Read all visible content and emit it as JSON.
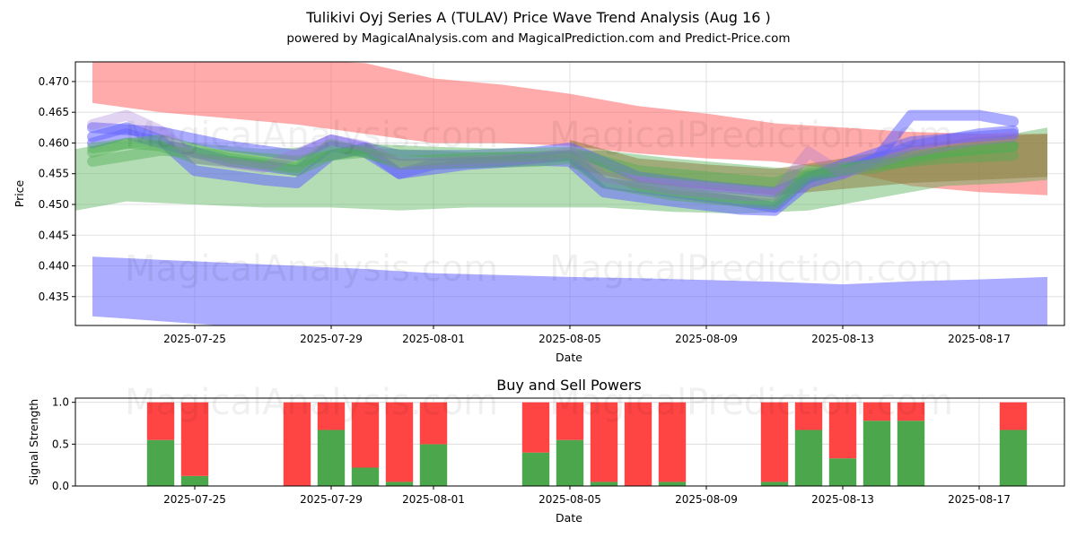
{
  "title": "Tulikivi Oyj Series A (TULAV) Price Wave Trend Analysis (Aug 16 )",
  "subtitle": "powered by MagicalAnalysis.com and MagicalPrediction.com and Predict-Price.com",
  "watermarks": [
    "MagicalAnalysis.com",
    "MagicalPrediction.com"
  ],
  "colors": {
    "red_band": "#ff6666",
    "blue_band": "#6666ff",
    "green_band": "#4caf50",
    "buy": "#4ca64c",
    "sell": "#ff4444"
  },
  "chart_data": [
    {
      "type": "area",
      "xlabel": "Date",
      "ylabel": "Price",
      "x_ticks": [
        "2025-07-25",
        "2025-07-29",
        "2025-08-01",
        "2025-08-05",
        "2025-08-09",
        "2025-08-13",
        "2025-08-17"
      ],
      "y_ticks": [
        "0.435",
        "0.440",
        "0.445",
        "0.450",
        "0.455",
        "0.460",
        "0.465",
        "0.470"
      ],
      "xlim": [
        "2025-07-21T12:00",
        "2025-08-19T12:00"
      ],
      "ylim": [
        0.4303,
        0.4732
      ],
      "grid": true,
      "bands": [
        {
          "color": "red",
          "dates": [
            "2025-07-22",
            "2025-07-24",
            "2025-07-26",
            "2025-07-28",
            "2025-07-30",
            "2025-08-01",
            "2025-08-03",
            "2025-08-05",
            "2025-08-07",
            "2025-08-09",
            "2025-08-11",
            "2025-08-13",
            "2025-08-15",
            "2025-08-17",
            "2025-08-19"
          ],
          "upper": [
            0.4735,
            0.4735,
            0.4735,
            0.4735,
            0.473,
            0.4705,
            0.4695,
            0.468,
            0.466,
            0.4648,
            0.4632,
            0.4625,
            0.4618,
            0.4615,
            0.4615
          ],
          "lower": [
            0.4665,
            0.465,
            0.464,
            0.463,
            0.4615,
            0.46,
            0.46,
            0.4595,
            0.4583,
            0.4575,
            0.457,
            0.4555,
            0.453,
            0.452,
            0.4515
          ]
        },
        {
          "color": "blue",
          "dates": [
            "2025-07-22",
            "2025-07-24",
            "2025-07-26",
            "2025-07-28",
            "2025-07-30",
            "2025-08-01",
            "2025-08-03",
            "2025-08-05",
            "2025-08-07",
            "2025-08-09",
            "2025-08-11",
            "2025-08-13",
            "2025-08-15",
            "2025-08-17",
            "2025-08-19"
          ],
          "upper": [
            0.4415,
            0.441,
            0.4405,
            0.44,
            0.4395,
            0.4388,
            0.4385,
            0.4382,
            0.438,
            0.4377,
            0.4374,
            0.437,
            0.4375,
            0.4378,
            0.4382
          ],
          "lower": [
            0.4318,
            0.431,
            0.4302,
            0.4295,
            0.429,
            0.4288,
            0.4285,
            0.4283,
            0.428,
            0.4278,
            0.4276,
            0.4274,
            0.4273,
            0.4272,
            0.43
          ]
        },
        {
          "color": "green",
          "dates": [
            "2025-07-21",
            "2025-07-23",
            "2025-07-25",
            "2025-07-27",
            "2025-07-29",
            "2025-07-31",
            "2025-08-02",
            "2025-08-04",
            "2025-08-06",
            "2025-08-08",
            "2025-08-10",
            "2025-08-12",
            "2025-08-14",
            "2025-08-16",
            "2025-08-18",
            "2025-08-19"
          ],
          "upper": [
            0.4585,
            0.4605,
            0.46,
            0.459,
            0.4595,
            0.459,
            0.4585,
            0.4585,
            0.4588,
            0.4575,
            0.4565,
            0.4555,
            0.4575,
            0.4595,
            0.4615,
            0.4625
          ],
          "lower": [
            0.4485,
            0.4505,
            0.45,
            0.4495,
            0.4495,
            0.449,
            0.4495,
            0.4495,
            0.4495,
            0.4488,
            0.4485,
            0.449,
            0.451,
            0.453,
            0.4535,
            0.454
          ]
        },
        {
          "color": "brown",
          "dates": [
            "2025-08-05",
            "2025-08-07",
            "2025-08-09",
            "2025-08-11",
            "2025-08-13",
            "2025-08-15",
            "2025-08-17",
            "2025-08-19"
          ],
          "upper": [
            0.4605,
            0.4575,
            0.4565,
            0.4558,
            0.4575,
            0.4595,
            0.461,
            0.4615
          ],
          "lower": [
            0.456,
            0.4535,
            0.4525,
            0.4515,
            0.4525,
            0.4535,
            0.454,
            0.4545
          ]
        }
      ],
      "waves": [
        {
          "color": "blue",
          "dates": [
            "2025-07-22",
            "2025-07-23",
            "2025-07-24",
            "2025-07-25",
            "2025-07-27",
            "2025-07-28",
            "2025-07-29",
            "2025-07-30",
            "2025-07-31",
            "2025-08-02",
            "2025-08-04",
            "2025-08-05",
            "2025-08-06",
            "2025-08-08",
            "2025-08-10",
            "2025-08-11",
            "2025-08-12",
            "2025-08-13",
            "2025-08-14",
            "2025-08-15",
            "2025-08-17",
            "2025-08-18"
          ],
          "values": [
            0.461,
            0.4625,
            0.4605,
            0.4555,
            0.454,
            0.4535,
            0.458,
            0.4592,
            0.455,
            0.4565,
            0.4572,
            0.457,
            0.452,
            0.4505,
            0.4492,
            0.449,
            0.4535,
            0.455,
            0.4575,
            0.4645,
            0.4645,
            0.4635
          ]
        },
        {
          "color": "blue",
          "dates": [
            "2025-07-22",
            "2025-07-23",
            "2025-07-24",
            "2025-07-26",
            "2025-07-28",
            "2025-07-29",
            "2025-07-30",
            "2025-07-31",
            "2025-08-01",
            "2025-08-03",
            "2025-08-05",
            "2025-08-06",
            "2025-08-08",
            "2025-08-10",
            "2025-08-11",
            "2025-08-12",
            "2025-08-13",
            "2025-08-15",
            "2025-08-17",
            "2025-08-18"
          ],
          "values": [
            0.46,
            0.4615,
            0.46,
            0.457,
            0.4555,
            0.4595,
            0.4585,
            0.455,
            0.4565,
            0.457,
            0.458,
            0.4535,
            0.452,
            0.4505,
            0.4495,
            0.4545,
            0.4555,
            0.4595,
            0.4615,
            0.462
          ]
        },
        {
          "color": "blue",
          "dates": [
            "2025-07-22",
            "2025-07-24",
            "2025-07-26",
            "2025-07-28",
            "2025-07-29",
            "2025-07-31",
            "2025-08-02",
            "2025-08-04",
            "2025-08-05",
            "2025-08-07",
            "2025-08-09",
            "2025-08-11",
            "2025-08-13",
            "2025-08-15",
            "2025-08-18"
          ],
          "values": [
            0.4625,
            0.4618,
            0.4595,
            0.458,
            0.4605,
            0.458,
            0.458,
            0.4585,
            0.4592,
            0.4545,
            0.453,
            0.452,
            0.4565,
            0.4602,
            0.4615
          ]
        },
        {
          "color": "green",
          "dates": [
            "2025-07-22",
            "2025-07-23",
            "2025-07-24",
            "2025-07-25",
            "2025-07-27",
            "2025-07-28",
            "2025-07-29",
            "2025-07-30",
            "2025-07-31",
            "2025-08-02",
            "2025-08-04",
            "2025-08-05",
            "2025-08-06",
            "2025-08-08",
            "2025-08-10",
            "2025-08-11",
            "2025-08-12",
            "2025-08-13",
            "2025-08-15",
            "2025-08-17",
            "2025-08-18"
          ],
          "values": [
            0.4585,
            0.46,
            0.4595,
            0.4575,
            0.4565,
            0.4555,
            0.458,
            0.4585,
            0.4565,
            0.4568,
            0.457,
            0.4575,
            0.4535,
            0.4515,
            0.4505,
            0.45,
            0.4545,
            0.4555,
            0.458,
            0.459,
            0.4595
          ]
        },
        {
          "color": "green",
          "dates": [
            "2025-07-22",
            "2025-07-24",
            "2025-07-26",
            "2025-07-28",
            "2025-07-30",
            "2025-08-01",
            "2025-08-03",
            "2025-08-05",
            "2025-08-07",
            "2025-08-09",
            "2025-08-11",
            "2025-08-12",
            "2025-08-14",
            "2025-08-16",
            "2025-08-18"
          ],
          "values": [
            0.457,
            0.4588,
            0.458,
            0.457,
            0.459,
            0.4585,
            0.4582,
            0.4585,
            0.4555,
            0.4545,
            0.4535,
            0.4555,
            0.4565,
            0.4575,
            0.458
          ]
        },
        {
          "color": "green",
          "dates": [
            "2025-07-22",
            "2025-07-24",
            "2025-07-26",
            "2025-07-28",
            "2025-07-29",
            "2025-07-31",
            "2025-08-02",
            "2025-08-04",
            "2025-08-05",
            "2025-08-07",
            "2025-08-09",
            "2025-08-11",
            "2025-08-12",
            "2025-08-14",
            "2025-08-16",
            "2025-08-18"
          ],
          "values": [
            0.4592,
            0.4605,
            0.4575,
            0.456,
            0.4598,
            0.457,
            0.4575,
            0.4578,
            0.458,
            0.453,
            0.4515,
            0.4505,
            0.455,
            0.456,
            0.4585,
            0.4595
          ]
        },
        {
          "color": "purple",
          "dates": [
            "2025-07-22",
            "2025-07-23",
            "2025-07-24",
            "2025-07-25",
            "2025-07-27",
            "2025-07-29",
            "2025-07-30",
            "2025-07-31",
            "2025-08-02",
            "2025-08-04",
            "2025-08-05",
            "2025-08-06",
            "2025-08-08",
            "2025-08-10",
            "2025-08-11",
            "2025-08-12",
            "2025-08-13",
            "2025-08-15",
            "2025-08-17",
            "2025-08-18"
          ],
          "values": [
            0.463,
            0.4645,
            0.462,
            0.4575,
            0.456,
            0.4605,
            0.4595,
            0.4565,
            0.457,
            0.4575,
            0.4585,
            0.4545,
            0.4525,
            0.4515,
            0.4515,
            0.4585,
            0.455,
            0.4585,
            0.4605,
            0.461
          ]
        }
      ]
    },
    {
      "type": "bar",
      "title": "Buy and Sell Powers",
      "xlabel": "Date",
      "ylabel": "Signal Strength",
      "x_ticks": [
        "2025-07-25",
        "2025-07-29",
        "2025-08-01",
        "2025-08-05",
        "2025-08-09",
        "2025-08-13",
        "2025-08-17"
      ],
      "y_ticks": [
        "0.0",
        "0.5",
        "1.0"
      ],
      "xlim": [
        "2025-07-21T12:00",
        "2025-08-19T12:00"
      ],
      "ylim": [
        0,
        1.05
      ],
      "categories": [
        "2025-07-24",
        "2025-07-25",
        "2025-07-28",
        "2025-07-29",
        "2025-07-30",
        "2025-07-31",
        "2025-08-01",
        "2025-08-04",
        "2025-08-05",
        "2025-08-06",
        "2025-08-07",
        "2025-08-08",
        "2025-08-11",
        "2025-08-12",
        "2025-08-13",
        "2025-08-14",
        "2025-08-15",
        "2025-08-18"
      ],
      "series": [
        {
          "name": "Buy",
          "values": [
            0.55,
            0.12,
            0.0,
            0.67,
            0.22,
            0.05,
            0.5,
            0.4,
            0.55,
            0.05,
            0.0,
            0.05,
            0.05,
            0.67,
            0.33,
            0.78,
            0.78,
            0.67
          ]
        },
        {
          "name": "Sell",
          "values": [
            0.45,
            0.88,
            1.0,
            0.33,
            0.78,
            0.95,
            0.5,
            0.6,
            0.45,
            0.95,
            1.0,
            0.95,
            0.95,
            0.33,
            0.67,
            0.22,
            0.22,
            0.33
          ]
        }
      ]
    }
  ]
}
